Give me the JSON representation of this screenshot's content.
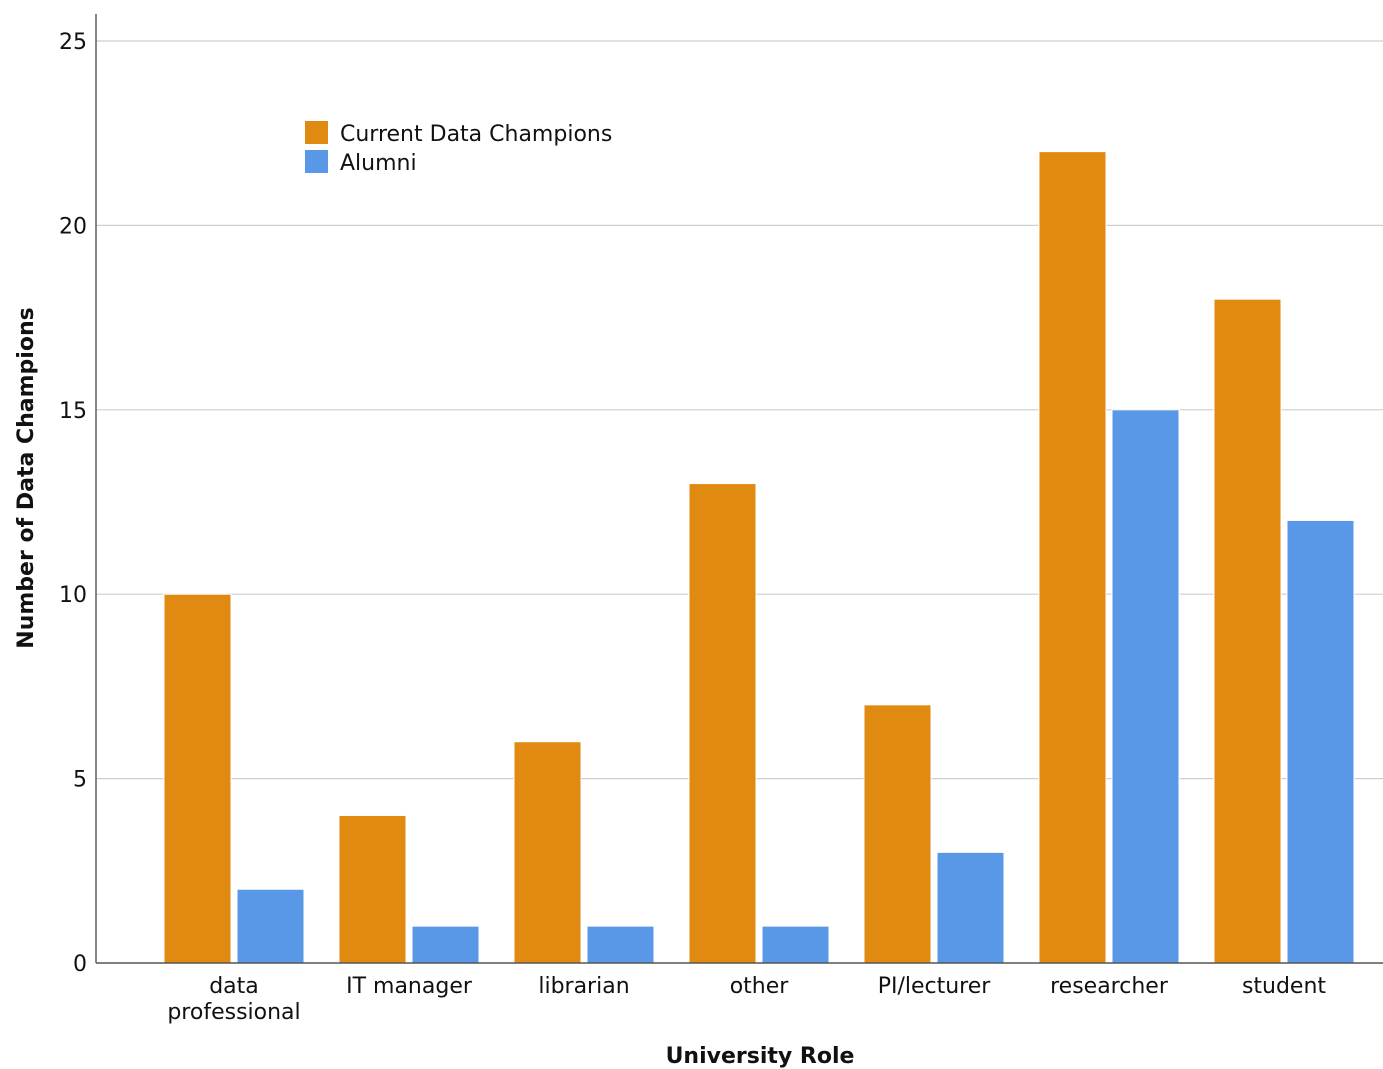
{
  "chart_data": {
    "type": "bar",
    "title": "",
    "xlabel": "University Role",
    "ylabel": "Number of Data Champions",
    "categories": [
      [
        "data",
        "professional"
      ],
      [
        "IT manager"
      ],
      [
        "librarian"
      ],
      [
        "other"
      ],
      [
        "PI/lecturer"
      ],
      [
        "researcher"
      ],
      [
        "student"
      ]
    ],
    "series": [
      {
        "name": "Current Data Champions",
        "color": "#e08a12",
        "values": [
          10,
          4,
          6,
          13,
          7,
          22,
          18
        ]
      },
      {
        "name": "Alumni",
        "color": "#5898e6",
        "values": [
          2,
          1,
          1,
          1,
          3,
          15,
          12
        ]
      }
    ],
    "ylim": [
      0,
      25
    ],
    "yticks": [
      0,
      5,
      10,
      15,
      20,
      25
    ],
    "grid": true,
    "legend_position": "top-left"
  }
}
